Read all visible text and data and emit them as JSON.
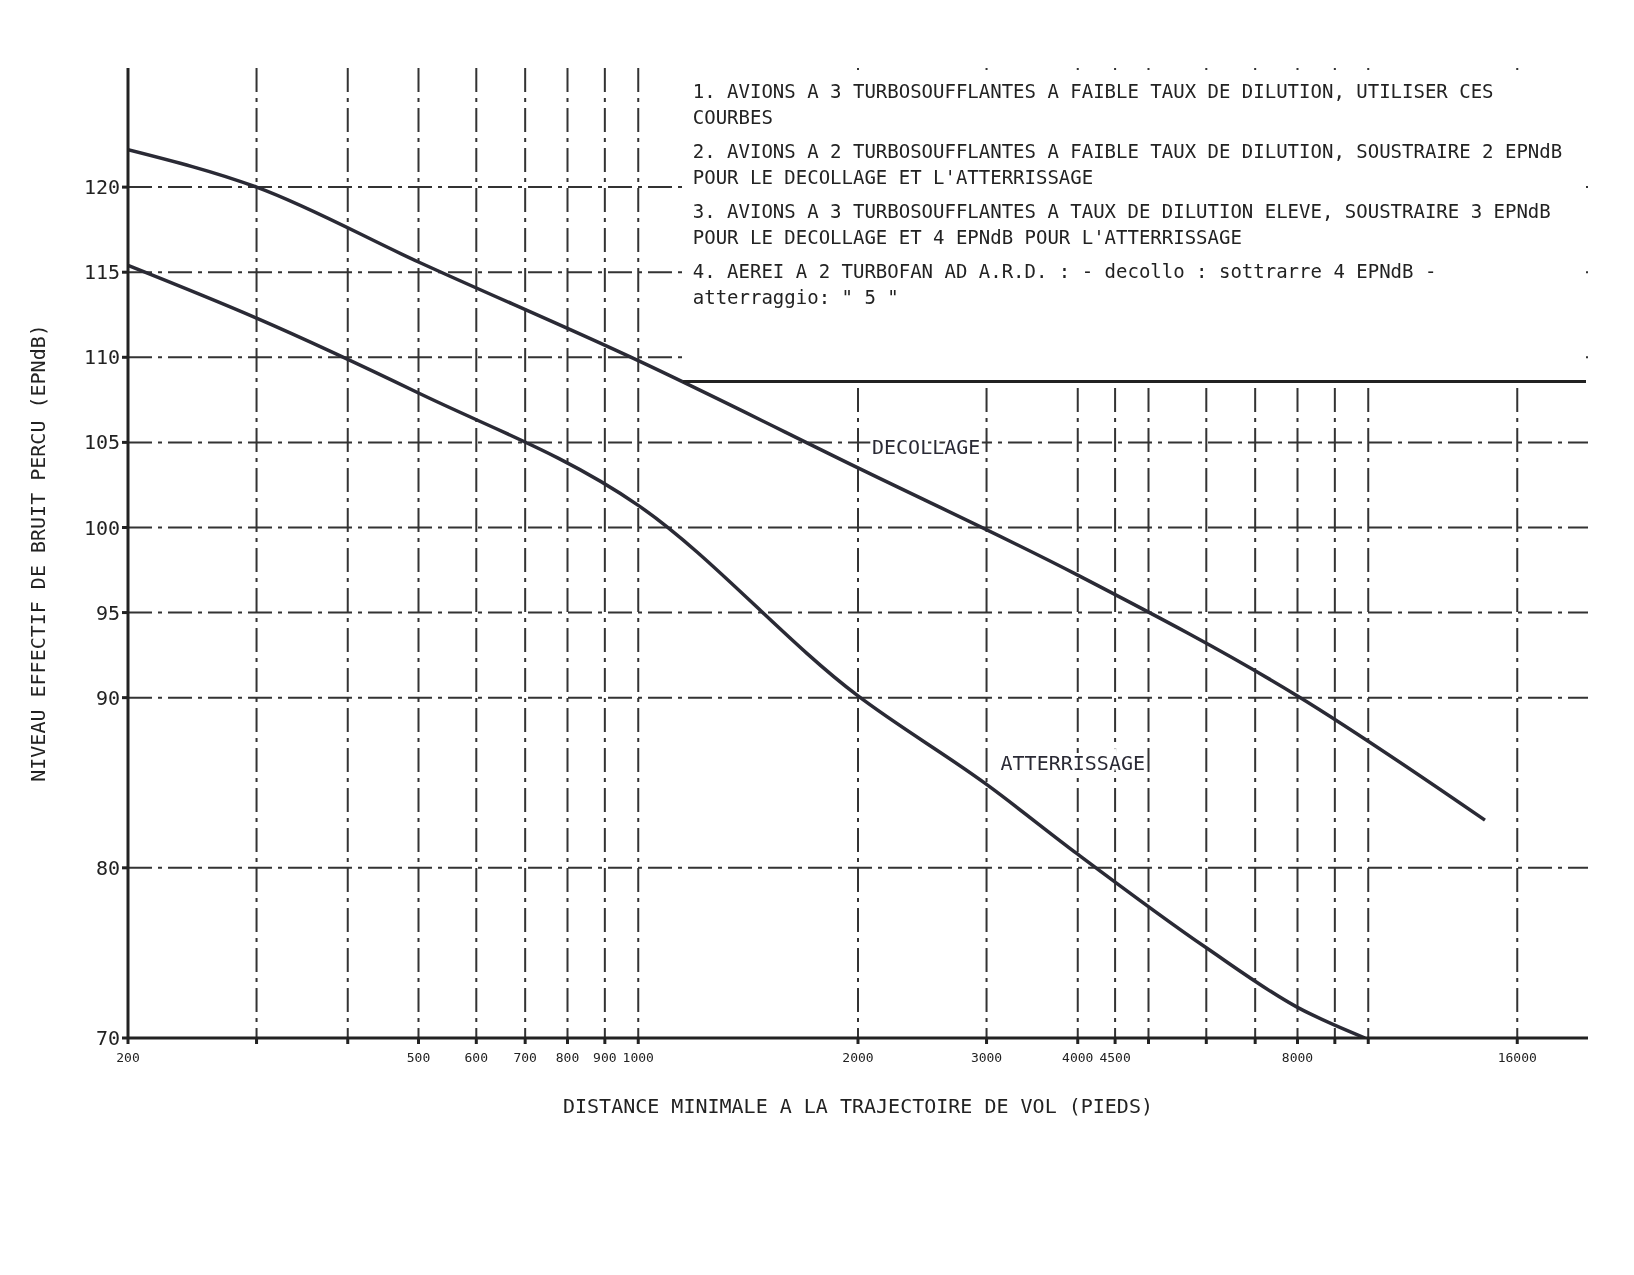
{
  "chart_data": {
    "type": "line",
    "xlabel": "DISTANCE MINIMALE A LA TRAJECTOIRE DE VOL (PIEDS)",
    "ylabel": "NIVEAU EFFECTIF DE BRUIT PERCU (EPNdB)",
    "log": "x",
    "xlim": [
      200,
      20000
    ],
    "ylim": [
      70,
      127
    ],
    "xticks": [
      200,
      {
        "value": 300,
        "label": null
      },
      {
        "value": 400,
        "label": null
      },
      500,
      600,
      700,
      800,
      900,
      1000,
      2000,
      3000,
      4000,
      4500,
      {
        "value": 5000,
        "label": null
      },
      {
        "value": 6000,
        "label": null
      },
      {
        "value": 7000,
        "label": null
      },
      8000,
      {
        "value": 9000,
        "label": null
      },
      {
        "value": 10000,
        "label": null
      },
      16000
    ],
    "yticks": [
      70,
      80,
      90,
      95,
      100,
      105,
      110,
      115,
      120
    ],
    "grid": true,
    "legend": false,
    "marker": "none",
    "line_style": "solid",
    "series": [
      {
        "name": "DECOLLAGE",
        "color": "#2a2a35",
        "x": [
          200,
          300,
          500,
          1000,
          2000,
          4000,
          8000,
          14450
        ],
        "values": [
          122.2,
          120,
          115.6,
          109.8,
          103.5,
          97.2,
          90.1,
          82.8
        ]
      },
      {
        "name": "ATTERRISSAGE",
        "color": "#2a2a35",
        "x": [
          200,
          300,
          500,
          1000,
          2000,
          3000,
          4000,
          6000,
          8000,
          9900
        ],
        "values": [
          115.4,
          112.3,
          107.9,
          101.3,
          90.1,
          84.9,
          80.8,
          75.3,
          71.8,
          70
        ]
      }
    ],
    "annotations": [
      "1. AVIONS A 3 TURBOSOUFFLANTES A FAIBLE TAUX DE DILUTION, UTILISER CES COURBES",
      "2. AVIONS A 2 TURBOSOUFFLANTES A FAIBLE TAUX DE DILUTION, SOUSTRAIRE 2 EPNdB POUR LE DECOLLAGE ET L'ATTERRISSAGE",
      "3. AVIONS A 3 TURBOSOUFFLANTES A TAUX DE DILUTION ELEVE, SOUSTRAIRE 3 EPNdB POUR LE DECOLLAGE ET 4 EPNdB POUR L'ATTERRISSAGE",
      "4. AEREI A 2 TURBOFAN AD A.R.D. : - decollo : sottrarre 4 EPNdB - atterraggio: \" 5 \""
    ]
  }
}
